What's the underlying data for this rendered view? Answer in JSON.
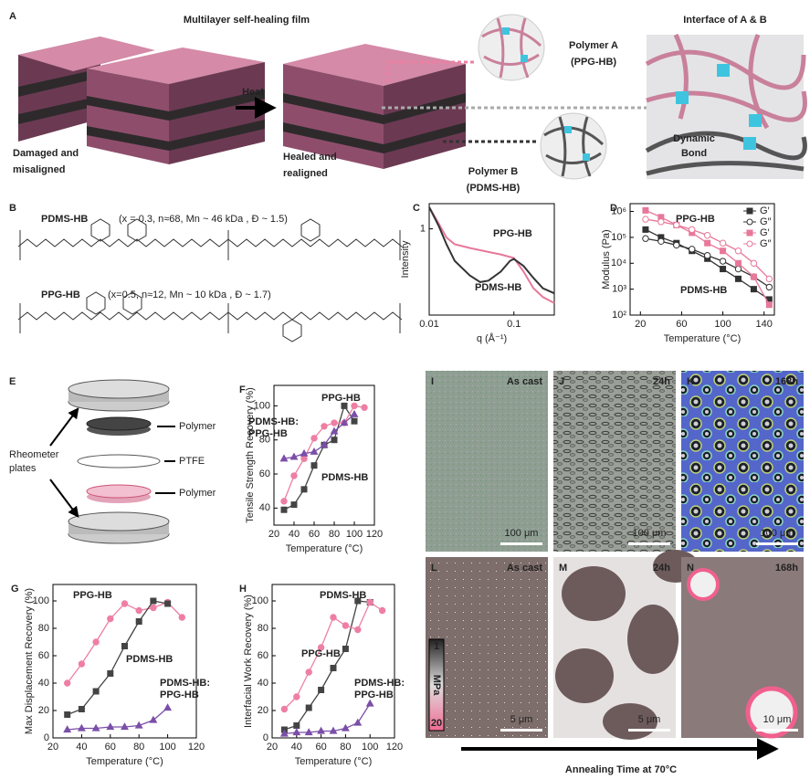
{
  "panel_a": {
    "label": "A",
    "title": "Multilayer self-healing film",
    "interface_title": "Interface of A & B",
    "damaged": [
      "Damaged and",
      "misaligned"
    ],
    "heat": "Heat",
    "healed": [
      "Healed and",
      "realigned"
    ],
    "polymer_a": [
      "Polymer A",
      "(PPG-HB)"
    ],
    "polymer_b": [
      "Polymer B",
      "(PDMS-HB)"
    ],
    "bond": [
      "Dynamic",
      "Bond"
    ]
  },
  "panel_b": {
    "label": "B",
    "pdms": {
      "name": "PDMS-HB",
      "details": "(x = 0.3, n≈68, Mn ~ 46 kDa , Đ ~ 1.5)"
    },
    "ppg": {
      "name": "PPG-HB",
      "details": "(x=0.5, n≈12, Mn ~ 10 kDa , Đ ~ 1.7)"
    }
  },
  "panel_e": {
    "label": "E",
    "plates": [
      "Rheometer",
      "plates"
    ],
    "polymer_top": "Polymer",
    "ptfe": "PTFE",
    "polymer_bottom": "Polymer"
  },
  "micrographs": [
    {
      "label": "I",
      "time": "As cast",
      "scale": "100 μm"
    },
    {
      "label": "J",
      "time": "24h",
      "scale": "100 μm"
    },
    {
      "label": "K",
      "time": "168h",
      "scale": "100 μm"
    },
    {
      "label": "L",
      "time": "As cast",
      "scale": "5 μm"
    },
    {
      "label": "M",
      "time": "24h",
      "scale": "5 μm"
    },
    {
      "label": "N",
      "time": "168h",
      "scale": "10 μm"
    }
  ],
  "colorbar": {
    "min": 1,
    "unit": "MPa",
    "max": 20
  },
  "arrow": "Annealing Time at 70°C",
  "chart_data": [
    {
      "type": "line",
      "panel": "C",
      "xlabel": "q (Å⁻¹)",
      "ylabel": "Intensity",
      "xlog": true,
      "ylog": true,
      "xlim": [
        0.01,
        0.3
      ],
      "ylim": [
        0.2,
        1.6
      ],
      "xticks": [
        0.01,
        0.1
      ],
      "yticks": [
        1
      ],
      "series": [
        {
          "name": "PPG-HB",
          "color": "#e8789a",
          "marker": "none",
          "x": [
            0.01,
            0.013,
            0.016,
            0.02,
            0.03,
            0.05,
            0.07,
            0.1,
            0.13,
            0.17,
            0.22,
            0.3
          ],
          "values": [
            1.5,
            1.1,
            0.85,
            0.75,
            0.7,
            0.65,
            0.62,
            0.58,
            0.45,
            0.33,
            0.28,
            0.25
          ]
        },
        {
          "name": "PDMS-HB",
          "color": "#333333",
          "marker": "none",
          "x": [
            0.01,
            0.013,
            0.016,
            0.02,
            0.03,
            0.04,
            0.05,
            0.07,
            0.09,
            0.1,
            0.13,
            0.17,
            0.22,
            0.3
          ],
          "values": [
            1.5,
            1.05,
            0.75,
            0.55,
            0.42,
            0.37,
            0.38,
            0.45,
            0.55,
            0.57,
            0.5,
            0.4,
            0.33,
            0.3
          ]
        }
      ]
    },
    {
      "type": "line",
      "panel": "D",
      "xlabel": "Temperature (°C)",
      "ylabel": "Modulus (Pa)",
      "ylog": true,
      "legend": "upper right",
      "xlim": [
        10,
        150
      ],
      "ylim": [
        100,
        2000000
      ],
      "xticks": [
        20,
        60,
        100,
        140
      ],
      "yticks": [
        {
          "value": 100,
          "label": "10²"
        },
        {
          "value": 1000,
          "label": "10³"
        },
        {
          "value": 10000,
          "label": "10⁴"
        },
        {
          "value": 100000,
          "label": "10⁵"
        },
        {
          "value": 1000000,
          "label": "10⁶"
        }
      ],
      "annotations": [
        [
          "PPG-HB"
        ],
        [
          "PDMS-HB"
        ]
      ],
      "series": [
        {
          "name": "G′",
          "color": "#333333",
          "marker": "square",
          "x": [
            25,
            40,
            55,
            70,
            85,
            100,
            115,
            130,
            145
          ],
          "values": [
            200000,
            100000,
            60000,
            30000,
            15000,
            6000,
            2500,
            1000,
            400
          ]
        },
        {
          "name": "G″",
          "color": "#333333",
          "marker": "circle",
          "open": true,
          "x": [
            25,
            40,
            55,
            70,
            85,
            100,
            115,
            130,
            145
          ],
          "values": [
            90000,
            70000,
            50000,
            35000,
            20000,
            12000,
            6000,
            3000,
            1200
          ]
        },
        {
          "name": "G′",
          "color": "#e8789a",
          "marker": "square",
          "x": [
            25,
            40,
            55,
            70,
            85,
            100,
            115,
            130,
            145
          ],
          "values": [
            1100000,
            600000,
            300000,
            150000,
            60000,
            30000,
            10000,
            3000,
            250
          ]
        },
        {
          "name": "G″",
          "color": "#e8789a",
          "marker": "circle",
          "open": true,
          "x": [
            25,
            40,
            55,
            70,
            85,
            100,
            115,
            130,
            145
          ],
          "values": [
            500000,
            400000,
            300000,
            200000,
            120000,
            60000,
            30000,
            10000,
            2500
          ]
        }
      ]
    },
    {
      "type": "line",
      "panel": "F",
      "xlabel": "Temperature (°C)",
      "ylabel": "Tensile Strength Recovery (%)",
      "xlim": [
        20,
        120
      ],
      "ylim": [
        30,
        112
      ],
      "xticks": [
        20,
        40,
        60,
        80,
        100,
        120
      ],
      "yticks": [
        40,
        60,
        80,
        100
      ],
      "annotations": [
        [
          "PPG-HB"
        ],
        [
          "PDMS-HB:",
          "PPG-HB"
        ],
        [
          "PDMS-HB"
        ]
      ],
      "series": [
        {
          "name": "PDMS-HB",
          "color": "#444444",
          "marker": "square",
          "x": [
            30,
            40,
            50,
            60,
            70,
            80,
            90,
            100
          ],
          "values": [
            39,
            42,
            51,
            65,
            77,
            80,
            100,
            91
          ]
        },
        {
          "name": "PPG-HB",
          "color": "#ee7fa3",
          "marker": "circle",
          "x": [
            30,
            40,
            50,
            60,
            70,
            80,
            90,
            100,
            110
          ],
          "values": [
            44,
            59,
            69,
            81,
            88,
            90,
            90,
            100,
            99
          ]
        },
        {
          "name": "PDMS-HB:PPG-HB",
          "color": "#7b4fa8",
          "marker": "triangle",
          "x": [
            30,
            40,
            50,
            60,
            70,
            80,
            90,
            100
          ],
          "values": [
            69,
            70,
            72,
            73,
            77,
            85,
            90,
            95
          ]
        }
      ]
    },
    {
      "type": "line",
      "panel": "G",
      "xlabel": "Temperature (°C)",
      "ylabel": "Max Displacement Recovery (%)",
      "xlim": [
        20,
        120
      ],
      "ylim": [
        0,
        112
      ],
      "xticks": [
        20,
        40,
        60,
        80,
        100,
        120
      ],
      "yticks": [
        0,
        20,
        40,
        60,
        80,
        100
      ],
      "annotations": [
        [
          "PPG-HB"
        ],
        [
          "PDMS-HB"
        ],
        [
          "PDMS-HB:",
          "PPG-HB"
        ]
      ],
      "series": [
        {
          "name": "PPG-HB",
          "color": "#ee7fa3",
          "marker": "circle",
          "x": [
            30,
            40,
            50,
            60,
            70,
            80,
            90,
            100,
            110
          ],
          "values": [
            40,
            54,
            70,
            87,
            98,
            93,
            95,
            99,
            88
          ]
        },
        {
          "name": "PDMS-HB",
          "color": "#444444",
          "marker": "square",
          "x": [
            30,
            40,
            50,
            60,
            70,
            80,
            90,
            100
          ],
          "values": [
            17,
            21,
            34,
            47,
            67,
            85,
            100,
            98
          ]
        },
        {
          "name": "PDMS-HB:PPG-HB",
          "color": "#7b4fa8",
          "marker": "triangle",
          "x": [
            30,
            40,
            50,
            60,
            70,
            80,
            90,
            100
          ],
          "values": [
            6,
            7,
            7,
            8,
            8,
            9,
            13,
            22
          ]
        }
      ]
    },
    {
      "type": "line",
      "panel": "H",
      "xlabel": "Temperature (°C)",
      "ylabel": "Interfacial Work Recovery (%)",
      "xlim": [
        20,
        120
      ],
      "ylim": [
        0,
        112
      ],
      "xticks": [
        20,
        40,
        60,
        80,
        100,
        120
      ],
      "yticks": [
        0,
        20,
        40,
        60,
        80,
        100
      ],
      "annotations": [
        [
          "PDMS-HB"
        ],
        [
          "PPG-HB"
        ],
        [
          "PDMS-HB:",
          "PPG-HB"
        ]
      ],
      "series": [
        {
          "name": "PDMS-HB",
          "color": "#444444",
          "marker": "square",
          "x": [
            30,
            40,
            50,
            60,
            70,
            80,
            90,
            100
          ],
          "values": [
            6,
            9,
            22,
            35,
            51,
            65,
            100,
            99
          ]
        },
        {
          "name": "PPG-HB",
          "color": "#ee7fa3",
          "marker": "circle",
          "x": [
            30,
            40,
            50,
            60,
            70,
            80,
            90,
            100,
            110
          ],
          "values": [
            21,
            30,
            48,
            66,
            88,
            82,
            79,
            99,
            93
          ]
        },
        {
          "name": "PDMS-HB:PPG-HB",
          "color": "#7b4fa8",
          "marker": "triangle",
          "x": [
            30,
            40,
            50,
            60,
            70,
            80,
            90,
            100
          ],
          "values": [
            3,
            4,
            4,
            5,
            5,
            7,
            11,
            25
          ]
        }
      ]
    }
  ]
}
